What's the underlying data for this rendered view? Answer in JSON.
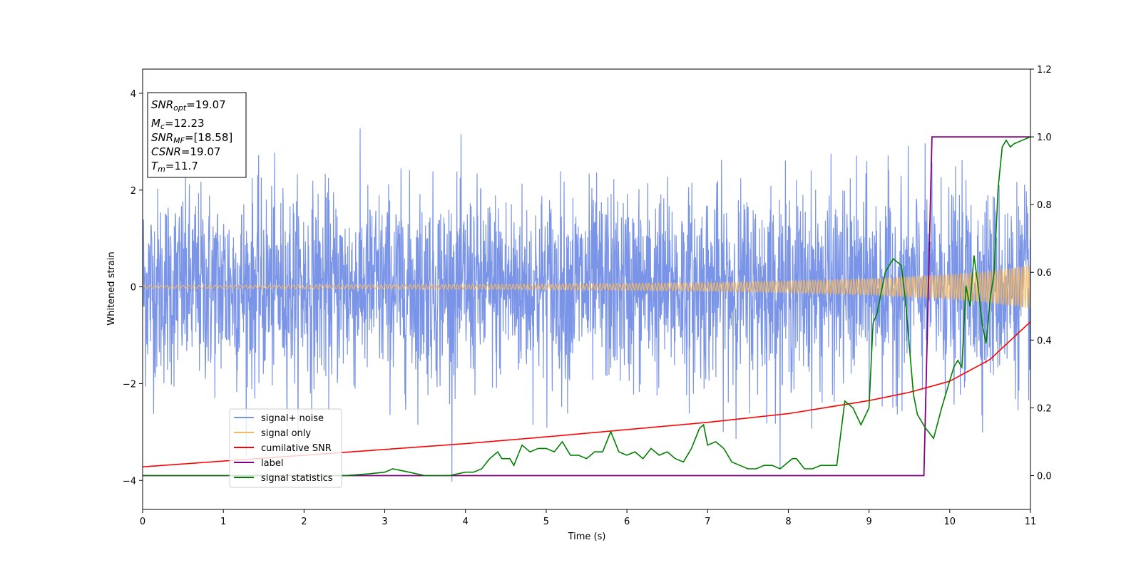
{
  "chart_data": {
    "type": "line",
    "xlabel": "Time (s)",
    "ylabel": "Whitened strain",
    "xlim": [
      0,
      11
    ],
    "ylim": [
      -4.6,
      4.5
    ],
    "y2lim": [
      -0.1,
      1.2
    ],
    "xticks": [
      "0",
      "1",
      "2",
      "3",
      "4",
      "5",
      "6",
      "7",
      "8",
      "9",
      "10",
      "11"
    ],
    "yticks": [
      "−4",
      "−2",
      "0",
      "2",
      "4"
    ],
    "y2ticks": [
      "0.0",
      "0.2",
      "0.4",
      "0.6",
      "0.8",
      "1.0",
      "1.2"
    ],
    "grid": false,
    "legend_position": "lower-left",
    "annotation_box": {
      "snr_opt": {
        "base": "SNR",
        "sub": "opt",
        "value": "=19.07"
      },
      "mc": {
        "base": "M",
        "sub": "c",
        "value": "=12.23"
      },
      "snr_mf": {
        "base": "SNR",
        "sub": "MF",
        "value": "=[18.58]"
      },
      "csnr": {
        "base": "CSNR",
        "value": "=19.07"
      },
      "tm": {
        "base": "T",
        "sub": "m",
        "value": "=11.7"
      }
    },
    "series": [
      {
        "name": "signal+ noise",
        "axis": "left",
        "color": "#7a94e8",
        "description_values": {
          "amplitude_std": 1.0,
          "min": -4.15,
          "max": 4.1
        }
      },
      {
        "name": "signal only",
        "axis": "left",
        "color": "#f5b861",
        "envelope": {
          "x": [
            0,
            2,
            4,
            6,
            7,
            8,
            9,
            10,
            10.5,
            11
          ],
          "amp": [
            0.03,
            0.04,
            0.05,
            0.07,
            0.09,
            0.12,
            0.17,
            0.26,
            0.33,
            0.45
          ]
        }
      },
      {
        "name": "cumilative SNR",
        "axis": "left",
        "color": "#ff0000",
        "x": [
          0,
          1,
          2,
          3,
          4,
          5,
          6,
          7,
          8,
          9,
          9.5,
          10,
          10.5,
          11
        ],
        "y": [
          -3.72,
          -3.6,
          -3.48,
          -3.36,
          -3.24,
          -3.1,
          -2.95,
          -2.8,
          -2.62,
          -2.35,
          -2.18,
          -1.95,
          -1.5,
          -0.72
        ]
      },
      {
        "name": "label",
        "axis": "right",
        "color": "#800080",
        "x": [
          0,
          9.68,
          9.78,
          11
        ],
        "y": [
          0.0,
          0.0,
          1.0,
          1.0
        ]
      },
      {
        "name": "signal statistics",
        "axis": "right",
        "color": "#008000",
        "x": [
          0,
          0.5,
          1,
          1.5,
          2,
          2.5,
          2.8,
          3.0,
          3.1,
          3.2,
          3.3,
          3.4,
          3.5,
          3.6,
          3.8,
          4.0,
          4.1,
          4.2,
          4.3,
          4.4,
          4.45,
          4.55,
          4.6,
          4.7,
          4.8,
          4.9,
          5.0,
          5.1,
          5.2,
          5.3,
          5.4,
          5.5,
          5.6,
          5.7,
          5.8,
          5.9,
          6.0,
          6.1,
          6.2,
          6.3,
          6.4,
          6.5,
          6.6,
          6.7,
          6.8,
          6.9,
          6.95,
          7.0,
          7.1,
          7.2,
          7.3,
          7.4,
          7.5,
          7.6,
          7.7,
          7.8,
          7.9,
          8.0,
          8.05,
          8.1,
          8.2,
          8.3,
          8.4,
          8.5,
          8.6,
          8.7,
          8.8,
          8.9,
          9.0,
          9.05,
          9.1,
          9.2,
          9.3,
          9.4,
          9.45,
          9.55,
          9.6,
          9.7,
          9.8,
          9.9,
          10.0,
          10.05,
          10.1,
          10.15,
          10.2,
          10.25,
          10.3,
          10.35,
          10.4,
          10.45,
          10.5,
          10.55,
          10.6,
          10.65,
          10.7,
          10.75,
          10.8,
          10.9,
          11.0
        ],
        "y": [
          0.0,
          0.0,
          0.0,
          0.0,
          0.0,
          0.0,
          0.005,
          0.01,
          0.02,
          0.015,
          0.01,
          0.005,
          0.0,
          0.0,
          0.0,
          0.01,
          0.01,
          0.02,
          0.05,
          0.07,
          0.05,
          0.05,
          0.03,
          0.09,
          0.07,
          0.08,
          0.08,
          0.07,
          0.1,
          0.06,
          0.06,
          0.05,
          0.07,
          0.07,
          0.13,
          0.07,
          0.06,
          0.07,
          0.05,
          0.08,
          0.06,
          0.07,
          0.05,
          0.04,
          0.08,
          0.14,
          0.15,
          0.09,
          0.1,
          0.08,
          0.04,
          0.03,
          0.02,
          0.02,
          0.03,
          0.03,
          0.02,
          0.04,
          0.05,
          0.05,
          0.02,
          0.02,
          0.03,
          0.03,
          0.03,
          0.22,
          0.2,
          0.15,
          0.2,
          0.45,
          0.48,
          0.6,
          0.64,
          0.62,
          0.52,
          0.24,
          0.18,
          0.14,
          0.11,
          0.2,
          0.28,
          0.32,
          0.34,
          0.32,
          0.56,
          0.5,
          0.65,
          0.56,
          0.45,
          0.39,
          0.52,
          0.6,
          0.85,
          0.97,
          0.99,
          0.97,
          0.98,
          0.99,
          1.0
        ]
      }
    ]
  }
}
